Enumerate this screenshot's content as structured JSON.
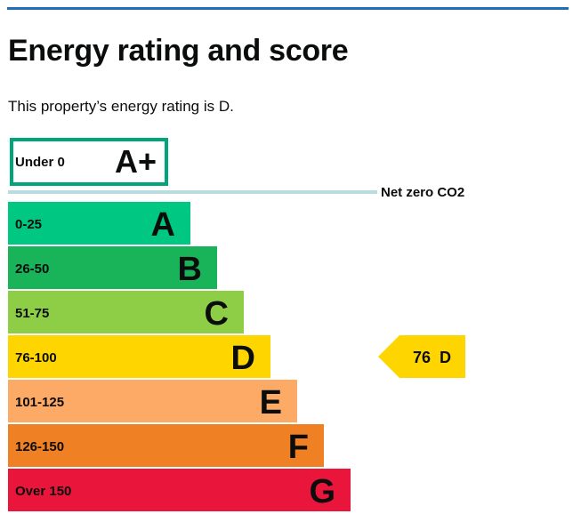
{
  "page": {
    "title": "Energy rating and score",
    "summary": "This property’s energy rating is D."
  },
  "chart_data": {
    "type": "bar",
    "orientation": "horizontal",
    "top_band": {
      "range": "Under 0",
      "letter": "A+",
      "color": "#00a57a",
      "style": "outlined"
    },
    "net_zero_label": "Net zero CO2",
    "net_zero_line_color": "#b9dce1",
    "categories": [
      "A",
      "B",
      "C",
      "D",
      "E",
      "F",
      "G"
    ],
    "ranges": [
      "0-25",
      "26-50",
      "51-75",
      "76-100",
      "101-125",
      "126-150",
      "Over 150"
    ],
    "relative_bar_length": [
      1,
      2,
      3,
      4,
      5,
      6,
      7
    ],
    "colors": [
      "#00c781",
      "#19b459",
      "#8dce46",
      "#ffd500",
      "#fcaa65",
      "#ef8023",
      "#e9153b"
    ],
    "current": {
      "score": 76,
      "letter": "D",
      "label": "76  D",
      "color": "#ffd500"
    }
  }
}
